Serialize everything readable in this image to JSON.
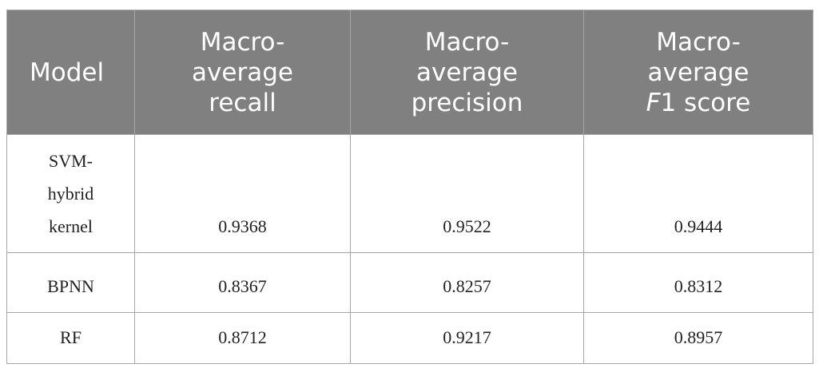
{
  "table": {
    "header": [
      [
        "Model"
      ],
      [
        "Macro-average recall"
      ],
      [
        "Macro-average precision"
      ],
      [
        "Macro-average ",
        "F",
        "1 score"
      ]
    ],
    "rows": [
      [
        "SVM-hybrid kernel",
        "0.9368",
        "0.9522",
        "0.9444"
      ],
      [
        "BPNN",
        "0.8367",
        "0.8257",
        "0.8312"
      ],
      [
        "RF",
        "0.8712",
        "0.9217",
        "0.8957"
      ]
    ]
  }
}
